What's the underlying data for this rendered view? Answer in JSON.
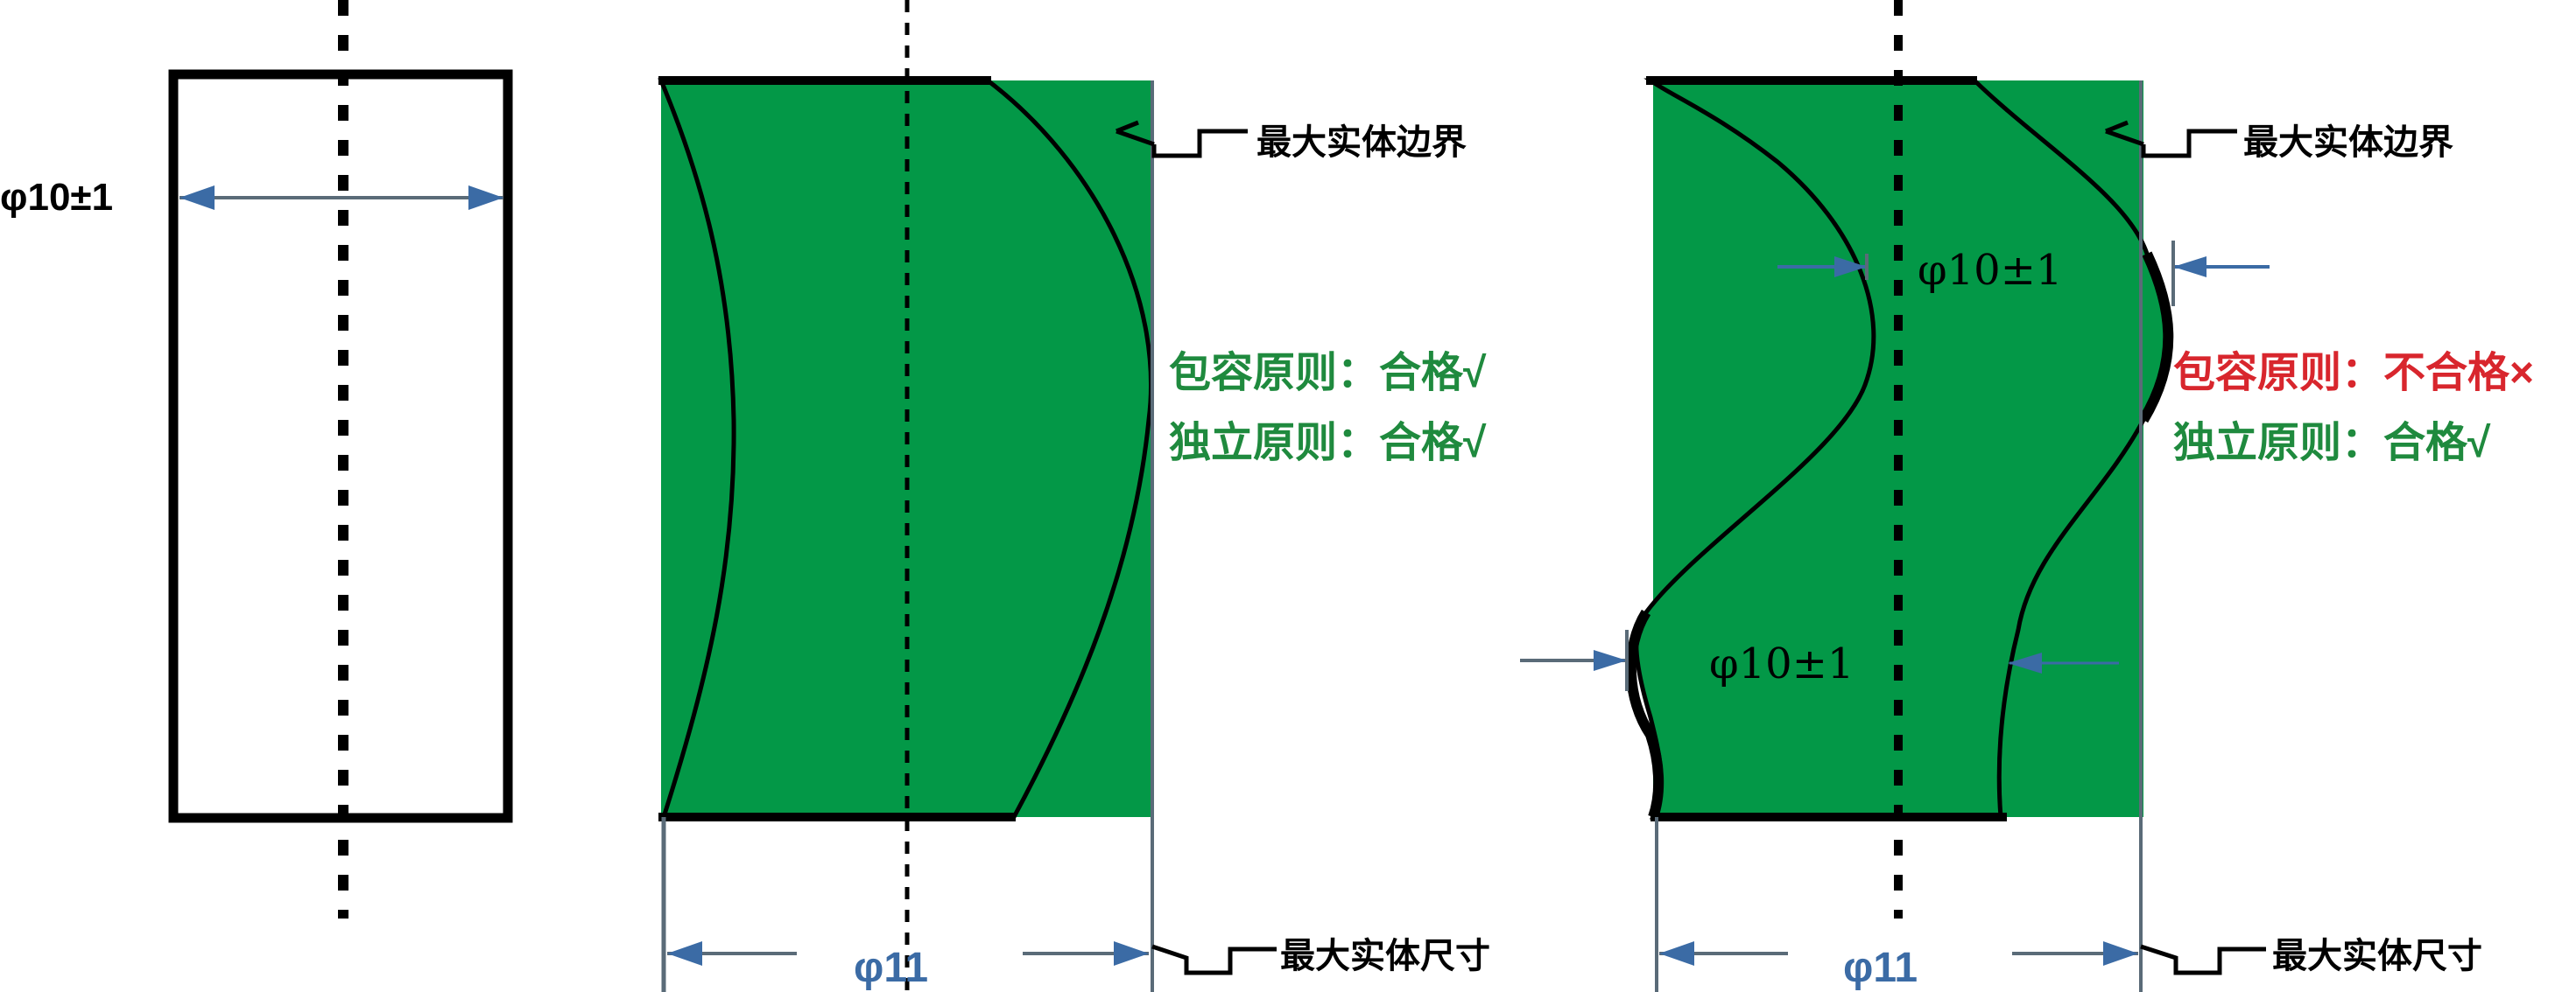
{
  "colors": {
    "fill_green": "#039847",
    "text_green": "#1f8a3e",
    "text_red": "#d8262d",
    "dim_blue": "#3b6ba5",
    "dim_grey": "#5a6b78",
    "outline": "#000000"
  },
  "panel1": {
    "dimension_label": "φ10±1"
  },
  "panel2": {
    "label_max_entity_boundary": "最大实体边界",
    "label_envelope_principle": "包容原则：合格√",
    "label_independent_principle": "独立原则：合格√",
    "label_max_entity_size": "最大实体尺寸",
    "dimension_label": "φ11"
  },
  "panel3": {
    "label_max_entity_boundary": "最大实体边界",
    "local_size_upper": "φ10±1",
    "local_size_lower": "φ10±1",
    "label_envelope_principle": "包容原则：不合格×",
    "label_independent_principle": "独立原则：合格√",
    "label_max_entity_size": "最大实体尺寸",
    "dimension_label": "φ11"
  }
}
